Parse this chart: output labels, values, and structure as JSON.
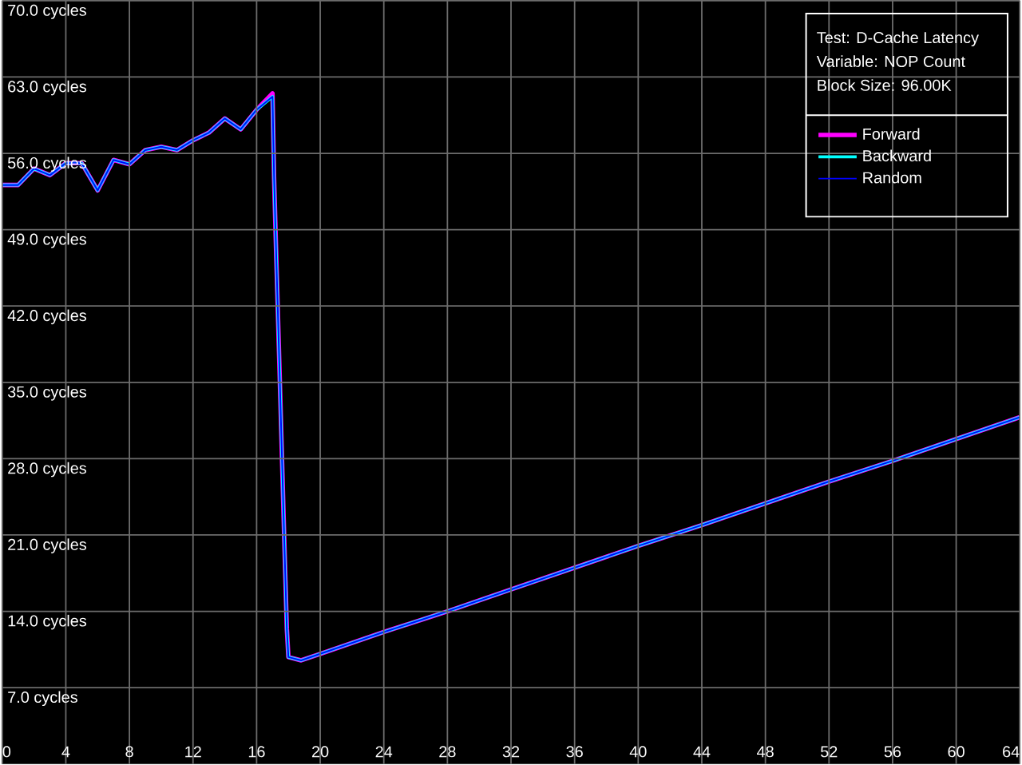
{
  "chart_data": {
    "type": "line",
    "annotations": [
      "Test: D-Cache Latency",
      "Variable: NOP Count",
      "Block Size: 96.00K"
    ],
    "x": [
      0,
      1,
      2,
      3,
      4,
      5,
      6,
      7,
      8,
      9,
      10,
      11,
      12,
      13,
      14,
      15,
      16,
      17,
      17.1,
      17.2,
      17.3,
      17.4,
      17.5,
      17.6,
      17.7,
      17.8,
      17.9,
      18,
      18.8,
      20,
      24,
      28,
      32,
      36,
      40,
      44,
      48,
      52,
      56,
      60,
      64
    ],
    "series": [
      {
        "name": "Forward",
        "color": "#ff00ff",
        "values": [
          53.1,
          53.1,
          54.6,
          54.0,
          55.1,
          55.1,
          52.6,
          55.4,
          55.0,
          56.3,
          56.6,
          56.3,
          57.2,
          57.9,
          59.2,
          58.2,
          60.0,
          61.5,
          53.7,
          48.4,
          43.3,
          38.2,
          33.1,
          27.8,
          22.6,
          17.5,
          12.4,
          9.8,
          9.5,
          10.1,
          12.1,
          14.0,
          16.0,
          18.0,
          20.0,
          21.9,
          23.9,
          25.9,
          27.8,
          29.8,
          31.8
        ]
      },
      {
        "name": "Backward",
        "color": "#00ffff",
        "values": [
          53.1,
          53.1,
          54.6,
          54.0,
          55.1,
          55.1,
          52.6,
          55.4,
          55.0,
          56.3,
          56.6,
          56.3,
          57.2,
          57.9,
          59.2,
          58.2,
          60.0,
          61.2,
          53.7,
          48.4,
          43.3,
          38.2,
          33.1,
          27.8,
          22.6,
          17.5,
          12.4,
          9.8,
          9.5,
          10.1,
          12.1,
          14.0,
          16.0,
          18.0,
          20.0,
          21.9,
          23.9,
          25.9,
          27.8,
          29.8,
          31.8
        ]
      },
      {
        "name": "Random",
        "color": "#0000ff",
        "values": [
          53.1,
          53.1,
          54.6,
          54.0,
          55.1,
          55.1,
          52.6,
          55.4,
          55.0,
          56.3,
          56.6,
          56.3,
          57.2,
          57.9,
          59.2,
          58.2,
          60.0,
          61.2,
          53.7,
          48.4,
          43.3,
          38.2,
          33.1,
          27.8,
          22.6,
          17.5,
          12.4,
          9.8,
          9.5,
          10.1,
          12.1,
          14.0,
          16.0,
          18.0,
          20.0,
          21.9,
          23.9,
          25.9,
          27.8,
          29.8,
          31.8
        ]
      }
    ],
    "xlim": [
      0,
      64
    ],
    "ylim": [
      0,
      70
    ],
    "xticks": [
      0,
      4,
      8,
      12,
      16,
      20,
      24,
      28,
      32,
      36,
      40,
      44,
      48,
      52,
      56,
      60,
      64
    ],
    "yticks": [
      {
        "value": 7,
        "label": "7.0 cycles"
      },
      {
        "value": 14,
        "label": "14.0 cycles"
      },
      {
        "value": 21,
        "label": "21.0 cycles"
      },
      {
        "value": 28,
        "label": "28.0 cycles"
      },
      {
        "value": 35,
        "label": "35.0 cycles"
      },
      {
        "value": 42,
        "label": "42.0 cycles"
      },
      {
        "value": 49,
        "label": "49.0 cycles"
      },
      {
        "value": 56,
        "label": "56.0 cycles"
      },
      {
        "value": 63,
        "label": "63.0 cycles"
      },
      {
        "value": 70,
        "label": "70.0 cycles"
      }
    ],
    "grid": true,
    "legend": "top right",
    "line_style": "solid"
  }
}
